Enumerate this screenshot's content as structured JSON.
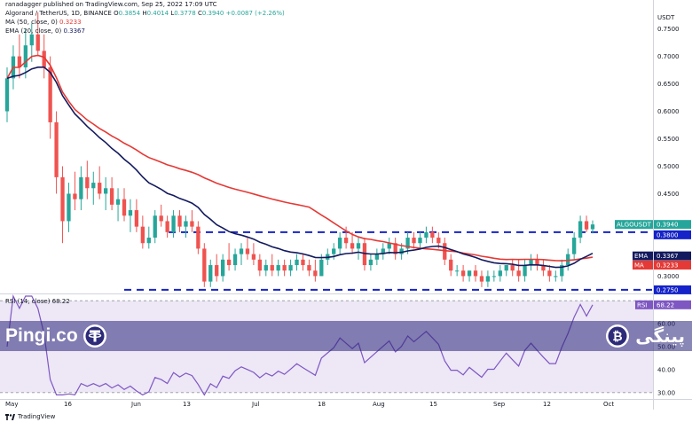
{
  "header": {
    "author_line": "ranadagger published on TradingView.com, Sep 25, 2022 17:09 UTC",
    "symbol_line": "Algorand / TetherUS, 1D, BINANCE",
    "ohlc": {
      "o_label": "O",
      "o": "0.3854",
      "h_label": "H",
      "h": "0.4014",
      "l_label": "L",
      "l": "0.3778",
      "c_label": "C",
      "c": "0.3940",
      "chg": "+0.0087 (+2.26%)"
    },
    "ma_line_label": "MA (50, close, 0)",
    "ma_line_value": "0.3233",
    "ema_line_label": "EMA (20, close, 0)",
    "ema_line_value": "0.3367"
  },
  "currency_label": "USDT",
  "colors": {
    "up": "#26a69a",
    "down": "#ef5350",
    "ma": "#e53935",
    "ema": "#131a5e",
    "level": "#1523c8",
    "rsi": "#7e57c2",
    "rsi_fill": "#ede7f6"
  },
  "price_badges": {
    "symbol": "ALGOUSDT",
    "price": "0.3940",
    "timer": "06:50:52",
    "level_top": "0.3800",
    "ema_label": "EMA",
    "ema_value": "0.3367",
    "ma_label": "MA",
    "ma_value": "0.3233",
    "level_bottom": "0.2750"
  },
  "rsi": {
    "label": "RSI (14, close)",
    "value": "68.22",
    "tag": "RSI"
  },
  "brand": {
    "left": "Pingi.co",
    "right": "پینگی",
    "left_icon": "tether-icon",
    "right_icon": "bitcoin-icon"
  },
  "footer": {
    "tradingview": "TradingView"
  },
  "chart_data": [
    {
      "type": "candlestick",
      "series_name": "ALGOUSDT",
      "y_axis_ticks": [
        "0.7500",
        "0.7000",
        "0.6500",
        "0.6000",
        "0.5500",
        "0.5000",
        "0.4500",
        "0.3000"
      ],
      "x_axis_ticks": [
        "May",
        "16",
        "Jun",
        "13",
        "Jul",
        "18",
        "Aug",
        "15",
        "Sep",
        "12",
        "Oct"
      ],
      "ylim": [
        0.27,
        0.78
      ],
      "horizontal_levels": [
        0.38,
        0.275
      ],
      "ma50_last": 0.3233,
      "ema20_last": 0.3367,
      "candles": [
        [
          0.6,
          0.68,
          0.58,
          0.66
        ],
        [
          0.66,
          0.72,
          0.64,
          0.7
        ],
        [
          0.7,
          0.74,
          0.66,
          0.68
        ],
        [
          0.68,
          0.75,
          0.66,
          0.72
        ],
        [
          0.72,
          0.76,
          0.69,
          0.74
        ],
        [
          0.74,
          0.78,
          0.7,
          0.71
        ],
        [
          0.71,
          0.74,
          0.66,
          0.68
        ],
        [
          0.68,
          0.7,
          0.55,
          0.58
        ],
        [
          0.58,
          0.6,
          0.45,
          0.48
        ],
        [
          0.48,
          0.5,
          0.36,
          0.4
        ],
        [
          0.4,
          0.47,
          0.38,
          0.45
        ],
        [
          0.45,
          0.49,
          0.42,
          0.44
        ],
        [
          0.44,
          0.5,
          0.42,
          0.48
        ],
        [
          0.48,
          0.51,
          0.44,
          0.46
        ],
        [
          0.46,
          0.49,
          0.43,
          0.47
        ],
        [
          0.47,
          0.5,
          0.44,
          0.45
        ],
        [
          0.45,
          0.48,
          0.42,
          0.46
        ],
        [
          0.46,
          0.48,
          0.42,
          0.43
        ],
        [
          0.43,
          0.46,
          0.4,
          0.44
        ],
        [
          0.44,
          0.46,
          0.4,
          0.41
        ],
        [
          0.41,
          0.44,
          0.38,
          0.42
        ],
        [
          0.42,
          0.44,
          0.38,
          0.39
        ],
        [
          0.39,
          0.41,
          0.35,
          0.36
        ],
        [
          0.36,
          0.39,
          0.35,
          0.37
        ],
        [
          0.37,
          0.42,
          0.36,
          0.41
        ],
        [
          0.41,
          0.43,
          0.39,
          0.4
        ],
        [
          0.4,
          0.41,
          0.37,
          0.38
        ],
        [
          0.38,
          0.42,
          0.37,
          0.41
        ],
        [
          0.41,
          0.42,
          0.38,
          0.39
        ],
        [
          0.39,
          0.41,
          0.37,
          0.4
        ],
        [
          0.4,
          0.42,
          0.38,
          0.39
        ],
        [
          0.39,
          0.4,
          0.34,
          0.35
        ],
        [
          0.35,
          0.36,
          0.28,
          0.29
        ],
        [
          0.29,
          0.33,
          0.28,
          0.32
        ],
        [
          0.32,
          0.34,
          0.29,
          0.3
        ],
        [
          0.3,
          0.34,
          0.29,
          0.33
        ],
        [
          0.33,
          0.36,
          0.31,
          0.32
        ],
        [
          0.32,
          0.35,
          0.31,
          0.34
        ],
        [
          0.34,
          0.36,
          0.32,
          0.35
        ],
        [
          0.35,
          0.37,
          0.33,
          0.34
        ],
        [
          0.34,
          0.36,
          0.32,
          0.33
        ],
        [
          0.33,
          0.34,
          0.3,
          0.31
        ],
        [
          0.31,
          0.33,
          0.3,
          0.32
        ],
        [
          0.32,
          0.34,
          0.3,
          0.31
        ],
        [
          0.31,
          0.33,
          0.3,
          0.32
        ],
        [
          0.32,
          0.33,
          0.3,
          0.31
        ],
        [
          0.31,
          0.33,
          0.3,
          0.32
        ],
        [
          0.32,
          0.34,
          0.31,
          0.33
        ],
        [
          0.33,
          0.34,
          0.31,
          0.32
        ],
        [
          0.32,
          0.33,
          0.3,
          0.31
        ],
        [
          0.31,
          0.33,
          0.29,
          0.3
        ],
        [
          0.3,
          0.34,
          0.3,
          0.33
        ],
        [
          0.33,
          0.35,
          0.32,
          0.34
        ],
        [
          0.34,
          0.36,
          0.33,
          0.35
        ],
        [
          0.35,
          0.38,
          0.34,
          0.37
        ],
        [
          0.37,
          0.39,
          0.35,
          0.36
        ],
        [
          0.36,
          0.38,
          0.34,
          0.35
        ],
        [
          0.35,
          0.37,
          0.33,
          0.36
        ],
        [
          0.36,
          0.37,
          0.31,
          0.32
        ],
        [
          0.32,
          0.34,
          0.31,
          0.33
        ],
        [
          0.33,
          0.35,
          0.32,
          0.34
        ],
        [
          0.34,
          0.36,
          0.33,
          0.35
        ],
        [
          0.35,
          0.37,
          0.34,
          0.36
        ],
        [
          0.36,
          0.37,
          0.33,
          0.34
        ],
        [
          0.34,
          0.36,
          0.33,
          0.35
        ],
        [
          0.35,
          0.38,
          0.34,
          0.37
        ],
        [
          0.37,
          0.38,
          0.35,
          0.36
        ],
        [
          0.36,
          0.38,
          0.35,
          0.37
        ],
        [
          0.37,
          0.39,
          0.36,
          0.38
        ],
        [
          0.38,
          0.39,
          0.36,
          0.37
        ],
        [
          0.37,
          0.38,
          0.35,
          0.36
        ],
        [
          0.36,
          0.37,
          0.32,
          0.33
        ],
        [
          0.33,
          0.34,
          0.3,
          0.31
        ],
        [
          0.31,
          0.32,
          0.3,
          0.31
        ],
        [
          0.31,
          0.32,
          0.29,
          0.3
        ],
        [
          0.3,
          0.31,
          0.29,
          0.31
        ],
        [
          0.31,
          0.32,
          0.29,
          0.3
        ],
        [
          0.3,
          0.31,
          0.28,
          0.29
        ],
        [
          0.29,
          0.31,
          0.28,
          0.3
        ],
        [
          0.3,
          0.31,
          0.29,
          0.3
        ],
        [
          0.3,
          0.32,
          0.29,
          0.31
        ],
        [
          0.31,
          0.32,
          0.3,
          0.32
        ],
        [
          0.32,
          0.33,
          0.3,
          0.31
        ],
        [
          0.31,
          0.33,
          0.29,
          0.3
        ],
        [
          0.3,
          0.33,
          0.29,
          0.32
        ],
        [
          0.32,
          0.34,
          0.31,
          0.33
        ],
        [
          0.33,
          0.34,
          0.31,
          0.32
        ],
        [
          0.32,
          0.33,
          0.3,
          0.31
        ],
        [
          0.31,
          0.32,
          0.29,
          0.3
        ],
        [
          0.3,
          0.31,
          0.29,
          0.3
        ],
        [
          0.3,
          0.33,
          0.29,
          0.32
        ],
        [
          0.32,
          0.35,
          0.31,
          0.34
        ],
        [
          0.34,
          0.38,
          0.33,
          0.37
        ],
        [
          0.37,
          0.41,
          0.36,
          0.4
        ],
        [
          0.4,
          0.41,
          0.38,
          0.385
        ],
        [
          0.3854,
          0.4014,
          0.3778,
          0.394
        ]
      ]
    },
    {
      "type": "line",
      "series_name": "RSI (14, close)",
      "y_axis_ticks": [
        "60.00",
        "50.00",
        "40.00",
        "30.00"
      ],
      "ylim": [
        28,
        72
      ],
      "levels": [
        30,
        70
      ],
      "last_value": 68.22
    }
  ]
}
